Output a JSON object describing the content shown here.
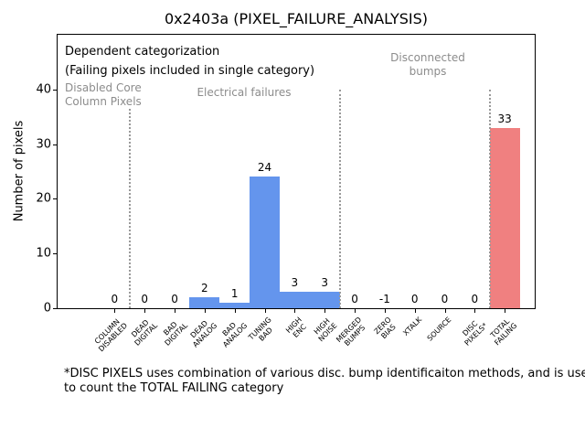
{
  "chart_data": {
    "type": "bar",
    "title": "0x2403a (PIXEL_FAILURE_ANALYSIS)",
    "ylabel": "Number of pixels",
    "xlabel": "",
    "categories": [
      "COLUMN\nDISABLED",
      "DEAD\nDIGITAL",
      "BAD\nDIGITAL",
      "DEAD\nANALOG",
      "BAD\nANALOG",
      "TUNING\nBAD",
      "HIGH\nENC",
      "HIGH\nNOISE",
      "MERGED\nBUMPS",
      "ZERO\nBIAS",
      "XTALK",
      "SOURCE",
      "DISC\nPIXELS*",
      "TOTAL\nFAILING"
    ],
    "values": [
      0,
      0,
      0,
      2,
      1,
      24,
      3,
      3,
      0,
      -1,
      0,
      0,
      0,
      33
    ],
    "bar_colors": [
      "#6495ed",
      "#6495ed",
      "#6495ed",
      "#6495ed",
      "#6495ed",
      "#6495ed",
      "#6495ed",
      "#6495ed",
      "#6495ed",
      "#6495ed",
      "#6495ed",
      "#6495ed",
      "#6495ed",
      "#f08080"
    ],
    "yticks": [
      0,
      10,
      20,
      30,
      40
    ],
    "ylim": [
      0,
      50
    ],
    "xlim": [
      -1.9,
      14.0
    ],
    "bar_width": 1.0,
    "grid": false,
    "legend": false,
    "separators": {
      "x": [
        0.5,
        7.5,
        12.5
      ],
      "ymax": 40,
      "style": "dotted",
      "color": "#999999"
    },
    "annotations": {
      "dependent_line1": "Dependent categorization",
      "dependent_line2": "(Failing pixels included in single category)",
      "region_disabled_line1": "Disabled Core",
      "region_disabled_line2": "Column Pixels",
      "region_electrical": "Electrical failures",
      "region_disconnected_line1": "Disconnected",
      "region_disconnected_line2": "bumps"
    },
    "footnote_line1": "*DISC PIXELS uses combination of various disc. bump identificaiton methods, and is used",
    "footnote_line2": "to count the TOTAL FAILING category"
  },
  "colors": {
    "bar_blue": "#6495ed",
    "bar_red": "#f08080",
    "annotation_gray": "#8c8c8c",
    "separator_gray": "#999999",
    "spine_black": "#000000",
    "background": "#ffffff"
  }
}
